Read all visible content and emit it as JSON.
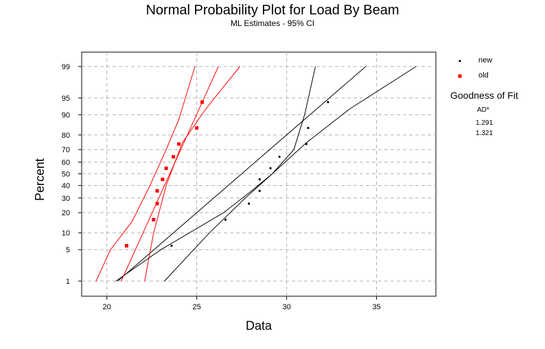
{
  "chart_data": {
    "type": "scatter",
    "title": "Normal Probability Plot for Load By Beam",
    "subtitle": "ML Estimates - 95% CI",
    "xlabel": "Data",
    "ylabel": "Percent",
    "xlim": [
      18.6,
      38.3
    ],
    "x_ticks": [
      20,
      25,
      30,
      35
    ],
    "y_ticks": [
      1,
      5,
      10,
      20,
      30,
      40,
      50,
      60,
      70,
      80,
      90,
      95,
      99
    ],
    "grid": true,
    "legend_position": "right",
    "series": [
      {
        "name": "new",
        "color": "#000000",
        "marker": "dot",
        "points": [
          [
            23.6,
            5.95
          ],
          [
            26.6,
            16.0
          ],
          [
            27.9,
            25.9
          ],
          [
            28.5,
            35.6
          ],
          [
            28.5,
            45.2
          ],
          [
            29.1,
            54.8
          ],
          [
            29.6,
            64.4
          ],
          [
            31.1,
            74.1
          ],
          [
            31.2,
            84.0
          ],
          [
            32.3,
            94.0
          ]
        ],
        "fit_line": [
          [
            20.6,
            1
          ],
          [
            34.4,
            99
          ]
        ],
        "ci_lower": [
          [
            23.2,
            1
          ],
          [
            25.7,
            10
          ],
          [
            27.7,
            30
          ],
          [
            29.2,
            50
          ],
          [
            31.1,
            75
          ],
          [
            33.5,
            92
          ],
          [
            37.2,
            99
          ]
        ],
        "ci_upper": [
          [
            20.5,
            1
          ],
          [
            23.0,
            5
          ],
          [
            26.5,
            20
          ],
          [
            28.0,
            35
          ],
          [
            29.2,
            50
          ],
          [
            30.4,
            70
          ],
          [
            31.0,
            90
          ],
          [
            31.6,
            99
          ]
        ]
      },
      {
        "name": "old",
        "color": "#ff0000",
        "marker": "square",
        "points": [
          [
            21.1,
            5.95
          ],
          [
            22.6,
            16.0
          ],
          [
            22.8,
            25.9
          ],
          [
            22.8,
            35.6
          ],
          [
            23.1,
            45.2
          ],
          [
            23.3,
            54.8
          ],
          [
            23.7,
            64.4
          ],
          [
            24.0,
            74.1
          ],
          [
            25.0,
            84.0
          ],
          [
            25.3,
            94.0
          ]
        ],
        "fit_line": [
          [
            20.8,
            1
          ],
          [
            26.2,
            99
          ]
        ],
        "ci_lower": [
          [
            22.1,
            1
          ],
          [
            22.6,
            10
          ],
          [
            23.3,
            40
          ],
          [
            24.2,
            75
          ],
          [
            25.5,
            92
          ],
          [
            27.4,
            99
          ]
        ],
        "ci_upper": [
          [
            19.4,
            1
          ],
          [
            20.2,
            5
          ],
          [
            21.4,
            15
          ],
          [
            22.4,
            40
          ],
          [
            23.3,
            70
          ],
          [
            24.0,
            88
          ],
          [
            24.9,
            99
          ]
        ]
      }
    ],
    "goodness_of_fit": {
      "title": "Goodness of Fit",
      "header": "AD*",
      "values": [
        "1.291",
        "1.321"
      ]
    }
  }
}
